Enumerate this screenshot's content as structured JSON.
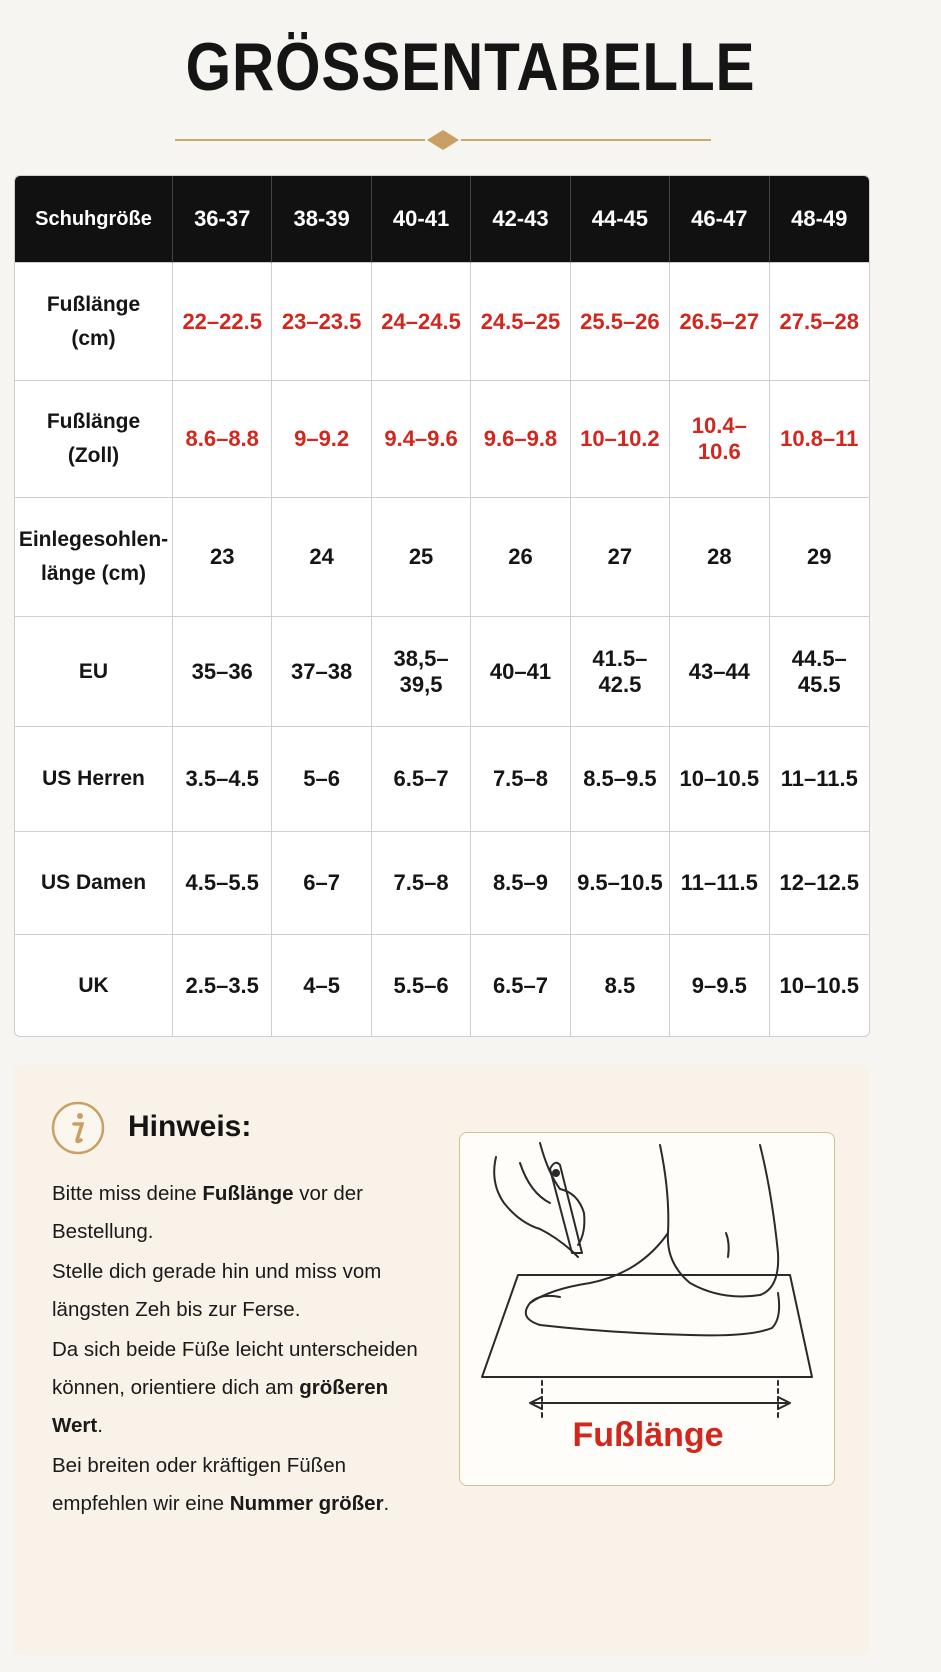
{
  "header": {
    "title": "GRÖSSENTABELLE"
  },
  "table": {
    "columns": [
      "Schuhgröße",
      "36-37",
      "38-39",
      "40-41",
      "42-43",
      "44-45",
      "46-47",
      "48-49"
    ],
    "rows": [
      {
        "label": "Fußlänge\n(cm)",
        "color": "#d3261c",
        "values": [
          "22–22.5",
          "23–23.5",
          "24–24.5",
          "24.5–25",
          "25.5–26",
          "26.5–27",
          "27.5–28"
        ]
      },
      {
        "label": "Fußlänge\n(Zoll)",
        "color": "#d3261c",
        "values": [
          "8.6–8.8",
          "9–9.2",
          "9.4–9.6",
          "9.6–9.8",
          "10–10.2",
          "10.4–10.6",
          "10.8–11"
        ]
      },
      {
        "label": "Einlegesohlen-\nlänge (cm)",
        "color": "#151515",
        "values": [
          "23",
          "24",
          "25",
          "26",
          "27",
          "28",
          "29"
        ]
      },
      {
        "label": "EU",
        "color": "#151515",
        "values": [
          "35–36",
          "37–38",
          "38,5–39,5",
          "40–41",
          "41.5–42.5",
          "43–44",
          "44.5–45.5"
        ]
      },
      {
        "label": "US Herren",
        "color": "#151515",
        "values": [
          "3.5–4.5",
          "5–6",
          "6.5–7",
          "7.5–8",
          "8.5–9.5",
          "10–10.5",
          "11–11.5"
        ]
      },
      {
        "label": "US Damen",
        "color": "#151515",
        "values": [
          "4.5–5.5",
          "6–7",
          "7.5–8",
          "8.5–9",
          "9.5–10.5",
          "11–11.5",
          "12–12.5"
        ]
      },
      {
        "label": "UK",
        "color": "#151515",
        "values": [
          "2.5–3.5",
          "4–5",
          "5.5–6",
          "6.5–7",
          "8.5",
          "9–9.5",
          "10–10.5"
        ]
      }
    ]
  },
  "note": {
    "title": "Hinweis:",
    "paragraphs": [
      [
        {
          "text": "Bitte miss deine "
        },
        {
          "text": "Fußlänge",
          "bold": true
        },
        {
          "text": " vor der Bestellung."
        }
      ],
      [
        {
          "text": "Stelle dich gerade hin und miss vom längsten Zeh bis zur Ferse."
        }
      ],
      [
        {
          "text": "Da sich beide Füße leicht unterscheiden können, orientiere dich am "
        },
        {
          "text": "größeren Wert",
          "bold": true
        },
        {
          "text": "."
        }
      ],
      [
        {
          "text": "Bei breiten oder kräftigen Füßen empfehlen wir eine "
        },
        {
          "text": "Nummer größer",
          "bold": true
        },
        {
          "text": "."
        }
      ]
    ]
  },
  "illustration": {
    "label": "Fußlänge"
  }
}
